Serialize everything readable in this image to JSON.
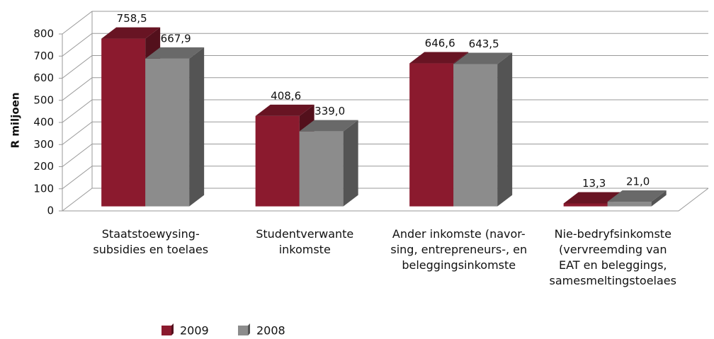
{
  "chart_data": {
    "type": "bar3d",
    "y_label": "R miljoen",
    "categories": [
      "Staatstoewysing-\nsubsidies en toelaes",
      "Studentverwante\ninkomste",
      "Ander inkomste (navor-\nsing, entrepreneurs-, en\nbeleggingsinkomste",
      "Nie-bedryfsinkomste\n(vervreemding van\nEAT en beleggings,\nsamesmeltingstoelaes"
    ],
    "series": [
      {
        "name": "2009",
        "color": "#8b1a2e",
        "values": [
          758.5,
          408.6,
          646.6,
          13.3
        ],
        "value_labels": [
          "758,5",
          "408,6",
          "646,6",
          "13,3"
        ]
      },
      {
        "name": "2008",
        "color": "#8c8c8c",
        "values": [
          667.9,
          339.0,
          643.5,
          21.0
        ],
        "value_labels": [
          "667,9",
          "339,0",
          "643,5",
          "21,0"
        ]
      }
    ],
    "ylim": [
      0,
      800
    ],
    "yticks": [
      0,
      100,
      200,
      300,
      400,
      500,
      600,
      700,
      800
    ],
    "grid": true,
    "legend": "bottom"
  }
}
